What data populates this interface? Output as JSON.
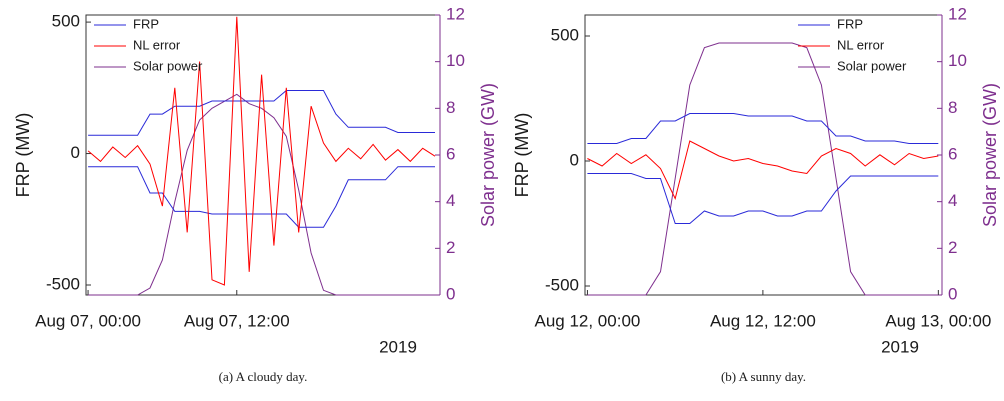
{
  "chart_data": [
    {
      "type": "line",
      "caption": "(a) A cloudy day.",
      "ylabel": "FRP (MW)",
      "y2label": "Solar power (GW)",
      "x_year_label": "2019",
      "legend": "upper left",
      "x": [
        "2019-08-07T00:00",
        "2019-08-07T01:00",
        "2019-08-07T02:00",
        "2019-08-07T03:00",
        "2019-08-07T04:00",
        "2019-08-07T05:00",
        "2019-08-07T06:00",
        "2019-08-07T07:00",
        "2019-08-07T08:00",
        "2019-08-07T09:00",
        "2019-08-07T10:00",
        "2019-08-07T11:00",
        "2019-08-07T12:00",
        "2019-08-07T13:00",
        "2019-08-07T14:00",
        "2019-08-07T15:00",
        "2019-08-07T16:00",
        "2019-08-07T17:00",
        "2019-08-07T18:00",
        "2019-08-07T19:00",
        "2019-08-07T20:00",
        "2019-08-07T21:00",
        "2019-08-07T22:00",
        "2019-08-07T23:00",
        "2019-08-08T00:00",
        "2019-08-08T01:00",
        "2019-08-08T02:00",
        "2019-08-08T03:00",
        "2019-08-08T04:00"
      ],
      "xlim": [
        "2019-08-06T23:50",
        "2019-08-08T04:24"
      ],
      "xticks": [
        {
          "value": "2019-08-07T00:00",
          "label": "Aug 07, 00:00"
        },
        {
          "value": "2019-08-07T12:00",
          "label": "Aug 07, 12:00"
        }
      ],
      "ylim": [
        -538,
        527
      ],
      "yticks": [
        -500,
        0,
        500
      ],
      "y2lim": [
        0,
        12
      ],
      "y2ticks": [
        0,
        2,
        4,
        6,
        8,
        10,
        12
      ],
      "series": [
        {
          "name": "FRP",
          "color": "#2a2ad8",
          "values": [
            70,
            70,
            70,
            70,
            70,
            150,
            150,
            180,
            180,
            180,
            200,
            200,
            200,
            200,
            200,
            200,
            240,
            240,
            240,
            240,
            150,
            100,
            100,
            100,
            100,
            80,
            80,
            80,
            80
          ],
          "lower_values": [
            -50,
            -50,
            -50,
            -50,
            -50,
            -150,
            -150,
            -220,
            -220,
            -220,
            -230,
            -230,
            -230,
            -230,
            -230,
            -230,
            -230,
            -280,
            -280,
            -280,
            -200,
            -100,
            -100,
            -100,
            -100,
            -50,
            -50,
            -50,
            -50
          ]
        },
        {
          "name": "NL error",
          "color": "#ff0000",
          "values": [
            10,
            -30,
            25,
            -15,
            30,
            -40,
            -200,
            250,
            -300,
            350,
            -480,
            -500,
            520,
            -450,
            300,
            -350,
            250,
            -300,
            180,
            40,
            -30,
            20,
            -20,
            35,
            -25,
            15,
            -30,
            20,
            -10
          ]
        },
        {
          "name": "Solar power",
          "color": "#7e2f8e",
          "axis": "y2",
          "values": [
            0,
            0,
            0,
            0,
            0,
            0.3,
            1.5,
            4,
            6.2,
            7.5,
            8,
            8.3,
            8.6,
            8.2,
            8,
            7.6,
            6.8,
            4.5,
            1.8,
            0.2,
            0,
            0,
            0,
            0,
            0,
            0,
            0,
            0,
            0
          ]
        }
      ]
    },
    {
      "type": "line",
      "caption": "(b) A sunny day.",
      "ylabel": "FRP (MW)",
      "y2label": "Solar power (GW)",
      "x_year_label": "2019",
      "legend": "upper right",
      "x": [
        "2019-08-12T00:00",
        "2019-08-12T01:00",
        "2019-08-12T02:00",
        "2019-08-12T03:00",
        "2019-08-12T04:00",
        "2019-08-12T05:00",
        "2019-08-12T06:00",
        "2019-08-12T07:00",
        "2019-08-12T08:00",
        "2019-08-12T09:00",
        "2019-08-12T10:00",
        "2019-08-12T11:00",
        "2019-08-12T12:00",
        "2019-08-12T13:00",
        "2019-08-12T14:00",
        "2019-08-12T15:00",
        "2019-08-12T16:00",
        "2019-08-12T17:00",
        "2019-08-12T18:00",
        "2019-08-12T19:00",
        "2019-08-12T20:00",
        "2019-08-12T21:00",
        "2019-08-12T22:00",
        "2019-08-12T23:00",
        "2019-08-13T00:00"
      ],
      "xlim": [
        "2019-08-11T23:50",
        "2019-08-13T00:15"
      ],
      "xticks": [
        {
          "value": "2019-08-12T00:00",
          "label": "Aug 12, 00:00"
        },
        {
          "value": "2019-08-12T12:00",
          "label": "Aug 12, 12:00"
        },
        {
          "value": "2019-08-13T00:00",
          "label": "Aug 13, 00:00"
        }
      ],
      "ylim": [
        -536,
        584
      ],
      "yticks": [
        -500,
        0,
        500
      ],
      "y2lim": [
        0,
        12
      ],
      "y2ticks": [
        0,
        2,
        4,
        6,
        8,
        10,
        12
      ],
      "series": [
        {
          "name": "FRP",
          "color": "#2a2ad8",
          "values": [
            70,
            70,
            70,
            90,
            90,
            160,
            160,
            190,
            190,
            190,
            190,
            180,
            180,
            180,
            180,
            160,
            160,
            100,
            100,
            80,
            80,
            80,
            70,
            70,
            70
          ],
          "lower_values": [
            -50,
            -50,
            -50,
            -50,
            -70,
            -70,
            -250,
            -250,
            -200,
            -220,
            -220,
            -200,
            -200,
            -220,
            -220,
            -200,
            -200,
            -120,
            -60,
            -60,
            -60,
            -60,
            -60,
            -60,
            -60
          ]
        },
        {
          "name": "NL error",
          "color": "#ff0000",
          "values": [
            10,
            -20,
            30,
            -10,
            25,
            -30,
            -150,
            80,
            50,
            20,
            0,
            10,
            -10,
            -20,
            -40,
            -50,
            20,
            50,
            30,
            -20,
            25,
            -15,
            30,
            10,
            20
          ]
        },
        {
          "name": "Solar power",
          "color": "#7e2f8e",
          "axis": "y2",
          "values": [
            0,
            0,
            0,
            0,
            0,
            1,
            5,
            9,
            10.6,
            10.8,
            10.8,
            10.8,
            10.8,
            10.8,
            10.8,
            10.6,
            9,
            5,
            1,
            0,
            0,
            0,
            0,
            0,
            0
          ]
        }
      ]
    }
  ]
}
